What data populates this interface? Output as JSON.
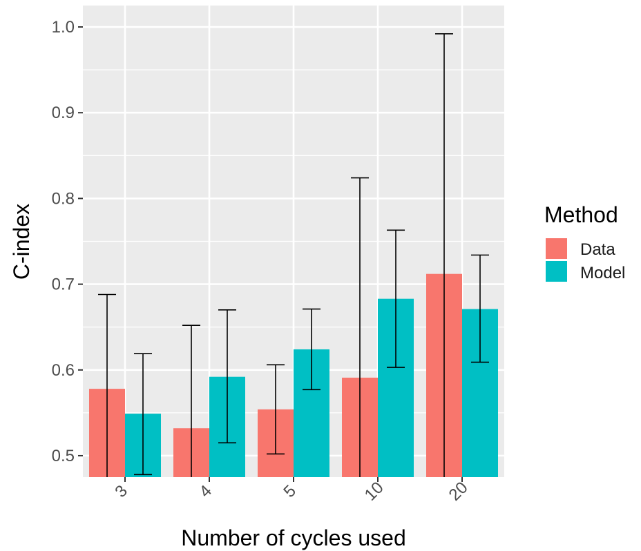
{
  "chart_data": {
    "type": "bar",
    "xlabel": "Number of cycles used",
    "ylabel": "C-index",
    "categories": [
      "3",
      "4",
      "5",
      "10",
      "20"
    ],
    "ylim": [
      0.475,
      1.025
    ],
    "yticks": [
      "0.5",
      "0.6",
      "0.7",
      "0.8",
      "0.9",
      "1.0"
    ],
    "grid": true,
    "legend": {
      "title": "Method",
      "position": "right"
    },
    "series": [
      {
        "name": "Data",
        "color": "#F8766D",
        "values": [
          0.578,
          0.532,
          0.554,
          0.591,
          0.712
        ],
        "error_low": [
          0.465,
          0.465,
          0.502,
          0.465,
          0.465
        ],
        "error_high": [
          0.688,
          0.652,
          0.606,
          0.824,
          0.992
        ]
      },
      {
        "name": "Model",
        "color": "#00BFC4",
        "values": [
          0.549,
          0.592,
          0.624,
          0.683,
          0.671
        ],
        "error_low": [
          0.478,
          0.515,
          0.577,
          0.603,
          0.609
        ],
        "error_high": [
          0.619,
          0.67,
          0.671,
          0.763,
          0.734
        ]
      }
    ]
  }
}
